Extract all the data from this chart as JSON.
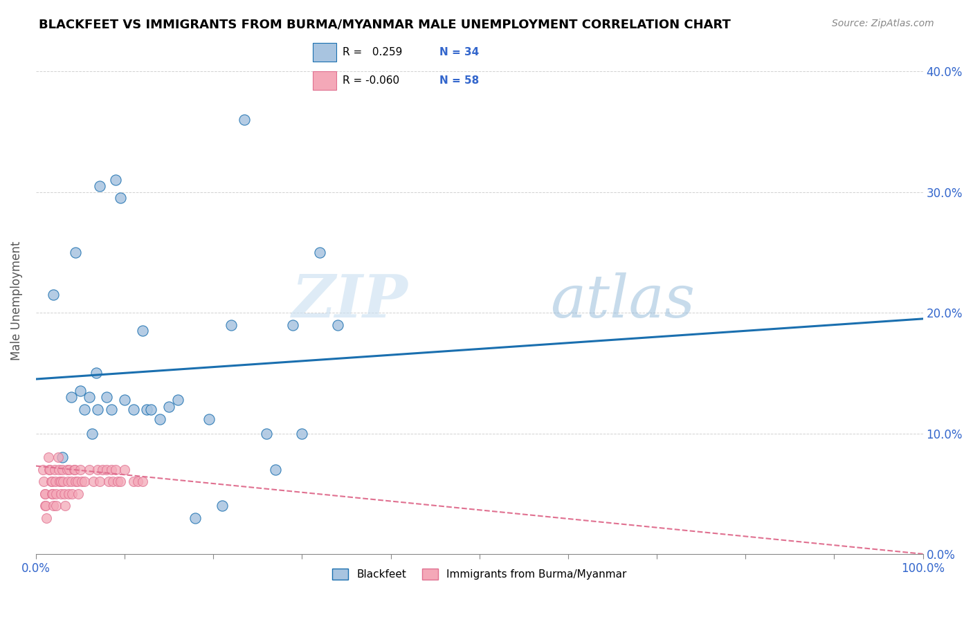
{
  "title": "BLACKFEET VS IMMIGRANTS FROM BURMA/MYANMAR MALE UNEMPLOYMENT CORRELATION CHART",
  "source": "Source: ZipAtlas.com",
  "ylabel": "Male Unemployment",
  "xlim": [
    0.0,
    1.0
  ],
  "ylim": [
    0.0,
    0.42
  ],
  "xticks": [
    0.0,
    0.1,
    0.2,
    0.3,
    0.4,
    0.5,
    0.6,
    0.7,
    0.8,
    0.9,
    1.0
  ],
  "xticklabels_show": {
    "0.0": "0.0%",
    "1.0": "100.0%"
  },
  "yticks": [
    0.0,
    0.1,
    0.2,
    0.3,
    0.4
  ],
  "yticklabels": [
    "0.0%",
    "10.0%",
    "20.0%",
    "30.0%",
    "40.0%"
  ],
  "blackfeet_color": "#a8c4e0",
  "burma_color": "#f4a8b8",
  "trendline_blackfeet_color": "#1a6faf",
  "trendline_burma_color": "#e07090",
  "legend_r_blackfeet": "0.259",
  "legend_n_blackfeet": "34",
  "legend_r_burma": "-0.060",
  "legend_n_burma": "58",
  "watermark_zip": "ZIP",
  "watermark_atlas": "atlas",
  "blackfeet_x": [
    0.02,
    0.03,
    0.04,
    0.045,
    0.05,
    0.055,
    0.06,
    0.063,
    0.068,
    0.07,
    0.072,
    0.08,
    0.085,
    0.09,
    0.095,
    0.1,
    0.11,
    0.12,
    0.125,
    0.13,
    0.14,
    0.15,
    0.16,
    0.18,
    0.195,
    0.21,
    0.22,
    0.235,
    0.26,
    0.27,
    0.29,
    0.3,
    0.32,
    0.34
  ],
  "blackfeet_y": [
    0.215,
    0.08,
    0.13,
    0.25,
    0.135,
    0.12,
    0.13,
    0.1,
    0.15,
    0.12,
    0.305,
    0.13,
    0.12,
    0.31,
    0.295,
    0.128,
    0.12,
    0.185,
    0.12,
    0.12,
    0.112,
    0.122,
    0.128,
    0.03,
    0.112,
    0.04,
    0.19,
    0.36,
    0.1,
    0.07,
    0.19,
    0.1,
    0.25,
    0.19
  ],
  "burma_x": [
    0.008,
    0.009,
    0.01,
    0.01,
    0.01,
    0.011,
    0.012,
    0.014,
    0.015,
    0.016,
    0.017,
    0.018,
    0.018,
    0.019,
    0.02,
    0.021,
    0.022,
    0.023,
    0.023,
    0.025,
    0.026,
    0.027,
    0.028,
    0.028,
    0.03,
    0.031,
    0.032,
    0.033,
    0.035,
    0.036,
    0.037,
    0.038,
    0.04,
    0.041,
    0.043,
    0.044,
    0.045,
    0.047,
    0.048,
    0.05,
    0.052,
    0.055,
    0.06,
    0.065,
    0.07,
    0.072,
    0.075,
    0.08,
    0.082,
    0.085,
    0.087,
    0.09,
    0.092,
    0.095,
    0.1,
    0.11,
    0.115,
    0.12
  ],
  "burma_y": [
    0.07,
    0.06,
    0.05,
    0.05,
    0.04,
    0.04,
    0.03,
    0.08,
    0.07,
    0.07,
    0.06,
    0.06,
    0.05,
    0.05,
    0.04,
    0.07,
    0.06,
    0.05,
    0.04,
    0.08,
    0.07,
    0.06,
    0.06,
    0.05,
    0.07,
    0.06,
    0.05,
    0.04,
    0.07,
    0.06,
    0.05,
    0.07,
    0.06,
    0.05,
    0.07,
    0.07,
    0.06,
    0.06,
    0.05,
    0.07,
    0.06,
    0.06,
    0.07,
    0.06,
    0.07,
    0.06,
    0.07,
    0.07,
    0.06,
    0.07,
    0.06,
    0.07,
    0.06,
    0.06,
    0.07,
    0.06,
    0.06,
    0.06
  ],
  "trendline_bf_x0": 0.0,
  "trendline_bf_x1": 1.0,
  "trendline_bf_y0": 0.145,
  "trendline_bf_y1": 0.195,
  "trendline_bm_x0": 0.0,
  "trendline_bm_x1": 1.0,
  "trendline_bm_y0": 0.073,
  "trendline_bm_y1": 0.0
}
